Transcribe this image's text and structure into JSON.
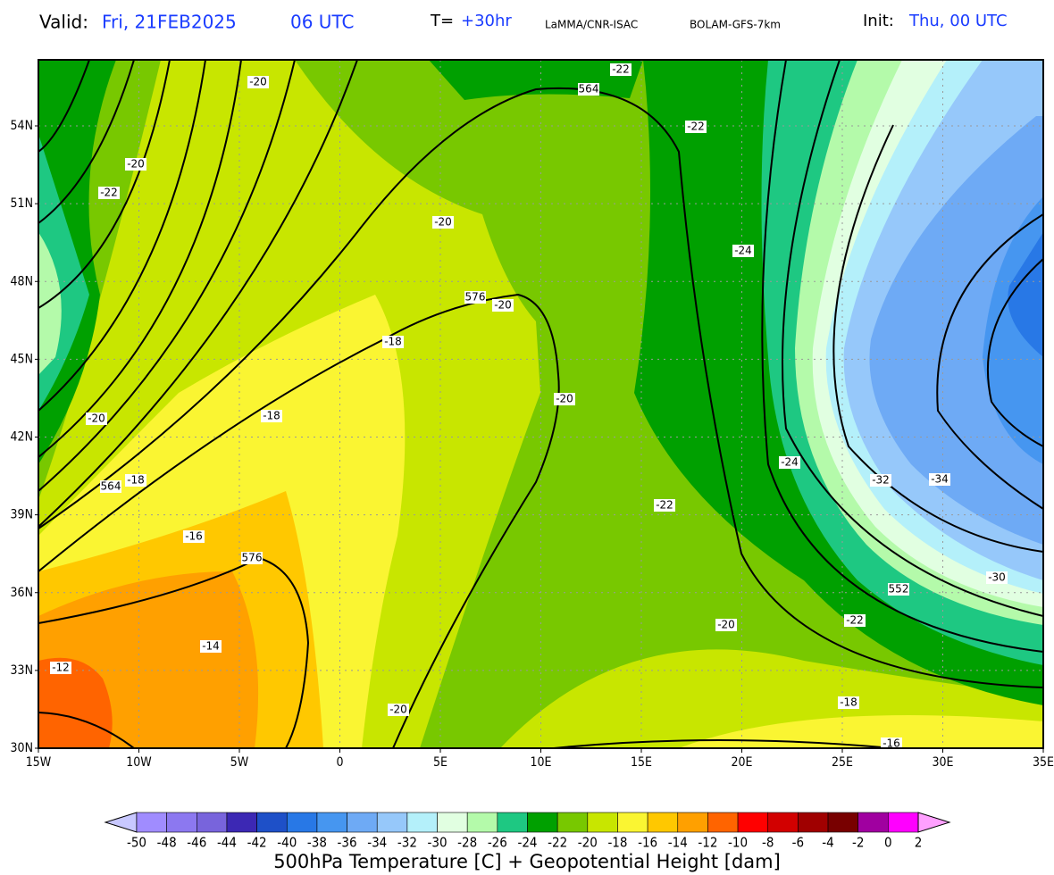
{
  "header": {
    "valid_label": "Valid:",
    "valid_date": "Fri, 21FEB2025",
    "valid_time": "06 UTC",
    "step_label": "T=",
    "step": "+30hr",
    "institute": "LaMMA/CNR-ISAC",
    "model": "BOLAM-GFS-7km",
    "init_label": "Init:",
    "init": "Thu, 00 UTC"
  },
  "map": {
    "x_labels": [
      "15W",
      "10W",
      "5W",
      "0",
      "5E",
      "10E",
      "15E",
      "20E",
      "25E",
      "30E",
      "35E"
    ],
    "y_labels": [
      "30N",
      "33N",
      "36N",
      "39N",
      "42N",
      "45N",
      "48N",
      "51N",
      "54N"
    ],
    "contour_labels": [
      "-22",
      "564",
      "-20",
      "-22",
      "-20",
      "-22",
      "-20",
      "-24",
      "576",
      "-20",
      "-18",
      "-20",
      "-20",
      "-18",
      "-24",
      "564",
      "-18",
      "-32",
      "-34",
      "-22",
      "-16",
      "576",
      "-30",
      "552",
      "-22",
      "-20",
      "-14",
      "-12",
      "-20",
      "-18",
      "-16"
    ]
  },
  "colorbar": {
    "levels": [
      "-50",
      "-48",
      "-46",
      "-44",
      "-42",
      "-40",
      "-38",
      "-36",
      "-34",
      "-32",
      "-30",
      "-28",
      "-26",
      "-24",
      "-22",
      "-20",
      "-18",
      "-16",
      "-14",
      "-12",
      "-10",
      "-8",
      "-6",
      "-4",
      "-2",
      "0",
      "2"
    ],
    "colors": [
      "#c8c8ff",
      "#a08cff",
      "#8c78f0",
      "#7864dc",
      "#3c28b4",
      "#1e50c8",
      "#2878e6",
      "#4696f0",
      "#6eaaf5",
      "#96c8fa",
      "#b4f0fa",
      "#e1ffe1",
      "#b4faaa",
      "#1ec882",
      "#00a000",
      "#78c800",
      "#c8e600",
      "#faf532",
      "#ffc800",
      "#ffa000",
      "#ff6400",
      "#ff0000",
      "#d20000",
      "#a00000",
      "#780000",
      "#a000a0",
      "#ff00ff",
      "#ffa0ff"
    ],
    "title": "500hPa Temperature [C] + Geopotential Height [dam]"
  }
}
